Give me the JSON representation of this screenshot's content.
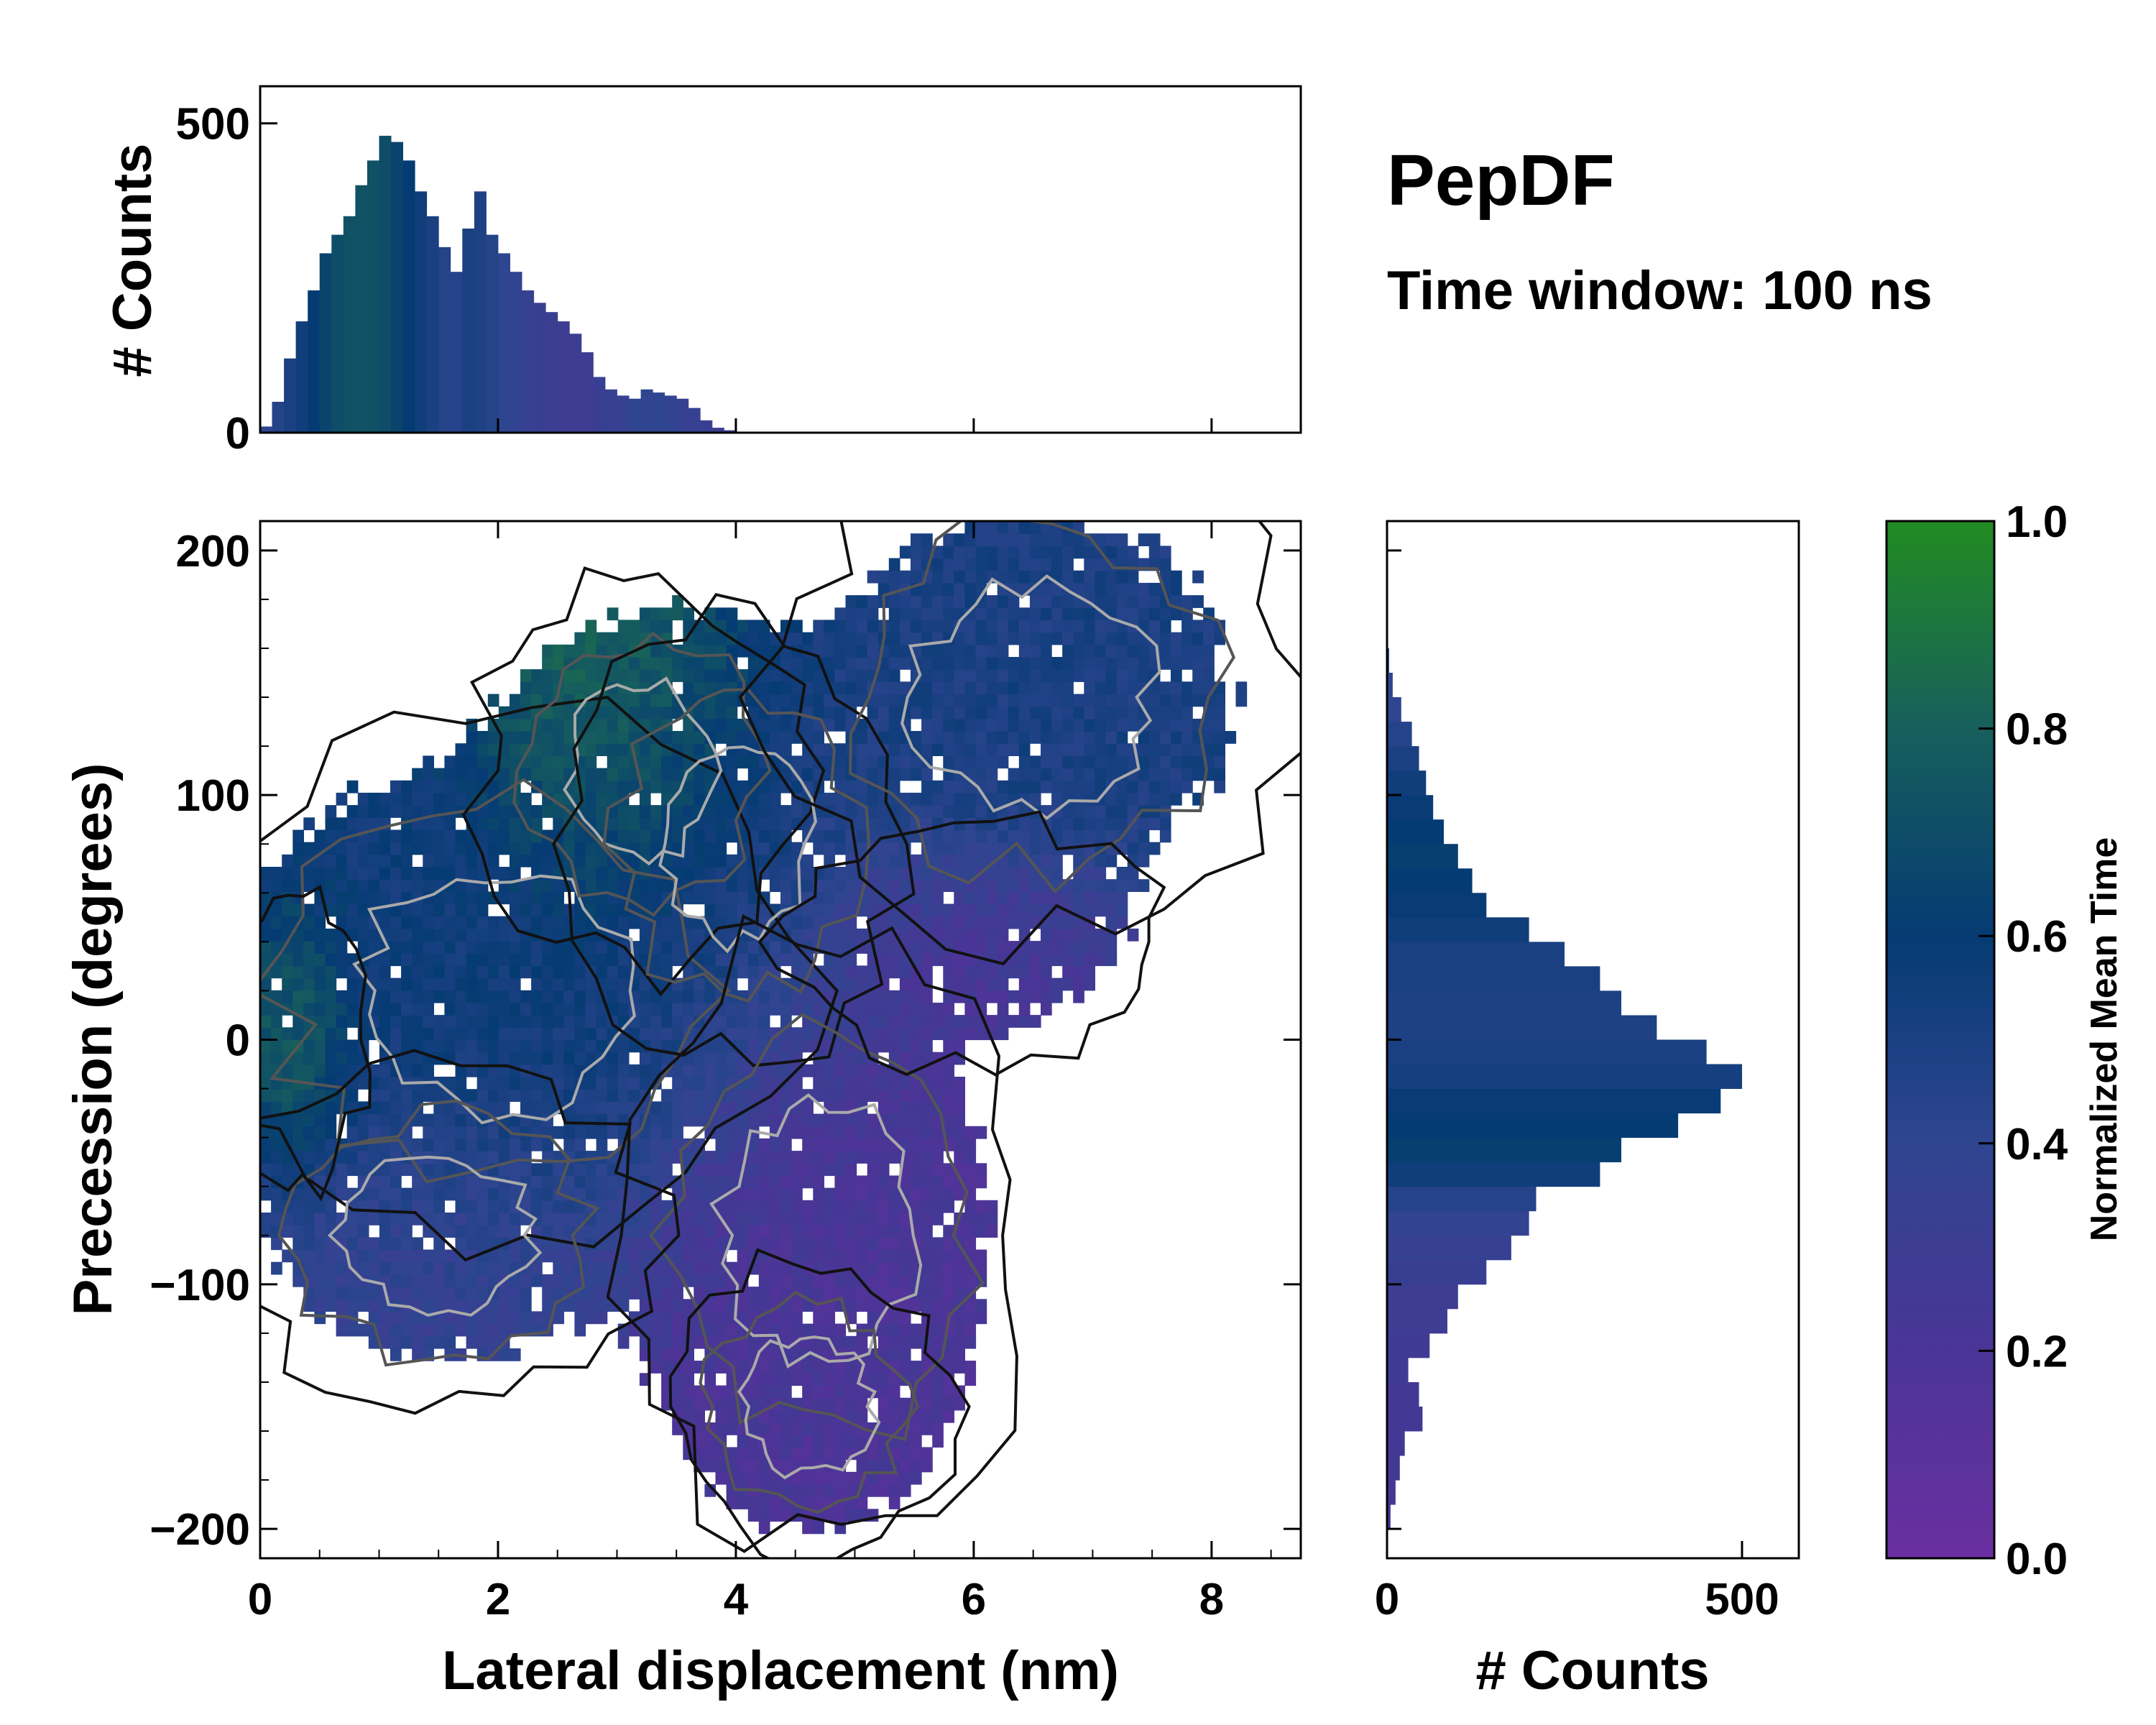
{
  "chart_data": {
    "type": "heatmap",
    "title": "PepDF",
    "subtitle": "Time window: 100 ns",
    "main": {
      "xlabel": "Lateral displacement (nm)",
      "ylabel": "Precession (degrees)",
      "xlim": [
        0,
        8.75
      ],
      "ylim": [
        -212,
        212
      ],
      "xticks": [
        "0",
        "2",
        "4",
        "6",
        "8"
      ],
      "xtick_values": [
        0,
        2,
        4,
        6,
        8
      ],
      "yticks": [
        "200",
        "100",
        "0",
        "−100",
        "−200"
      ],
      "ytick_values": [
        200,
        100,
        0,
        -100,
        -200
      ],
      "blobs": [
        {
          "x": 2.0,
          "y": 20,
          "sx": 1.3,
          "sy": 55,
          "w": 1.0,
          "t": 0.55
        },
        {
          "x": 3.2,
          "y": 110,
          "sx": 0.7,
          "sy": 40,
          "w": 0.7,
          "t": 0.85
        },
        {
          "x": 4.0,
          "y": 80,
          "sx": 0.7,
          "sy": 45,
          "w": 0.7,
          "t": 0.45
        },
        {
          "x": 6.5,
          "y": 140,
          "sx": 1.1,
          "sy": 50,
          "w": 0.75,
          "t": 0.5
        },
        {
          "x": 4.7,
          "y": -80,
          "sx": 0.9,
          "sy": 60,
          "w": 0.8,
          "t": 0.2
        },
        {
          "x": 4.6,
          "y": -150,
          "sx": 0.6,
          "sy": 30,
          "w": 0.6,
          "t": 0.2
        },
        {
          "x": 6.0,
          "y": 40,
          "sx": 0.8,
          "sy": 25,
          "w": 0.5,
          "t": 0.2
        },
        {
          "x": 1.5,
          "y": -80,
          "sx": 0.9,
          "sy": 35,
          "w": 0.6,
          "t": 0.35
        },
        {
          "x": 0.3,
          "y": 0,
          "sx": 0.3,
          "sy": 30,
          "w": 0.4,
          "t": 0.95
        }
      ]
    },
    "top_histogram": {
      "ylabel": "# Counts",
      "ylim": [
        0,
        560
      ],
      "yticks": [
        "0",
        "500"
      ],
      "ytick_values": [
        0,
        500
      ],
      "bin_start": 0,
      "bin_width": 0.1,
      "values": [
        10,
        50,
        120,
        180,
        230,
        290,
        320,
        350,
        400,
        440,
        480,
        470,
        440,
        390,
        350,
        300,
        260,
        330,
        390,
        320,
        290,
        260,
        230,
        210,
        195,
        180,
        160,
        130,
        90,
        70,
        60,
        55,
        70,
        65,
        60,
        55,
        40,
        20,
        8,
        4
      ],
      "colors": [
        0.4,
        0.45,
        0.5,
        0.55,
        0.6,
        0.65,
        0.7,
        0.72,
        0.73,
        0.72,
        0.7,
        0.65,
        0.6,
        0.55,
        0.5,
        0.45,
        0.45,
        0.5,
        0.48,
        0.45,
        0.4,
        0.38,
        0.35,
        0.33,
        0.32,
        0.3,
        0.3,
        0.3,
        0.33,
        0.35,
        0.35,
        0.4,
        0.4,
        0.4,
        0.38,
        0.35,
        0.35,
        0.33,
        0.3,
        0.3
      ]
    },
    "right_histogram": {
      "xlabel": "# Counts",
      "xlim": [
        0,
        580
      ],
      "xticks": [
        "0",
        "500"
      ],
      "xtick_values": [
        0,
        500
      ],
      "bin_start": -200,
      "bin_width": 10,
      "values": [
        5,
        12,
        18,
        25,
        50,
        45,
        30,
        60,
        85,
        100,
        140,
        175,
        200,
        210,
        300,
        330,
        410,
        470,
        500,
        450,
        380,
        330,
        300,
        250,
        200,
        140,
        120,
        100,
        80,
        65,
        55,
        45,
        35,
        20,
        8,
        3,
        1,
        0,
        0,
        0
      ],
      "colors": [
        0.25,
        0.25,
        0.25,
        0.25,
        0.25,
        0.25,
        0.28,
        0.28,
        0.3,
        0.3,
        0.33,
        0.35,
        0.38,
        0.45,
        0.55,
        0.62,
        0.6,
        0.58,
        0.52,
        0.5,
        0.48,
        0.48,
        0.5,
        0.5,
        0.55,
        0.58,
        0.6,
        0.62,
        0.6,
        0.58,
        0.55,
        0.5,
        0.45,
        0.4,
        0.4,
        0.4,
        0.4,
        0.4,
        0.4,
        0.4
      ]
    },
    "colorbar": {
      "label": "Normalized Mean Time",
      "range": [
        0.0,
        1.0
      ],
      "ticks": [
        "0.0",
        "0.2",
        "0.4",
        "0.6",
        "0.8",
        "1.0"
      ],
      "tick_values": [
        0,
        0.2,
        0.4,
        0.6,
        0.8,
        1.0
      ],
      "colormap": [
        "#6a2fa0",
        "#4a3596",
        "#2f4590",
        "#053b73",
        "#175f5c",
        "#228b22"
      ]
    }
  }
}
